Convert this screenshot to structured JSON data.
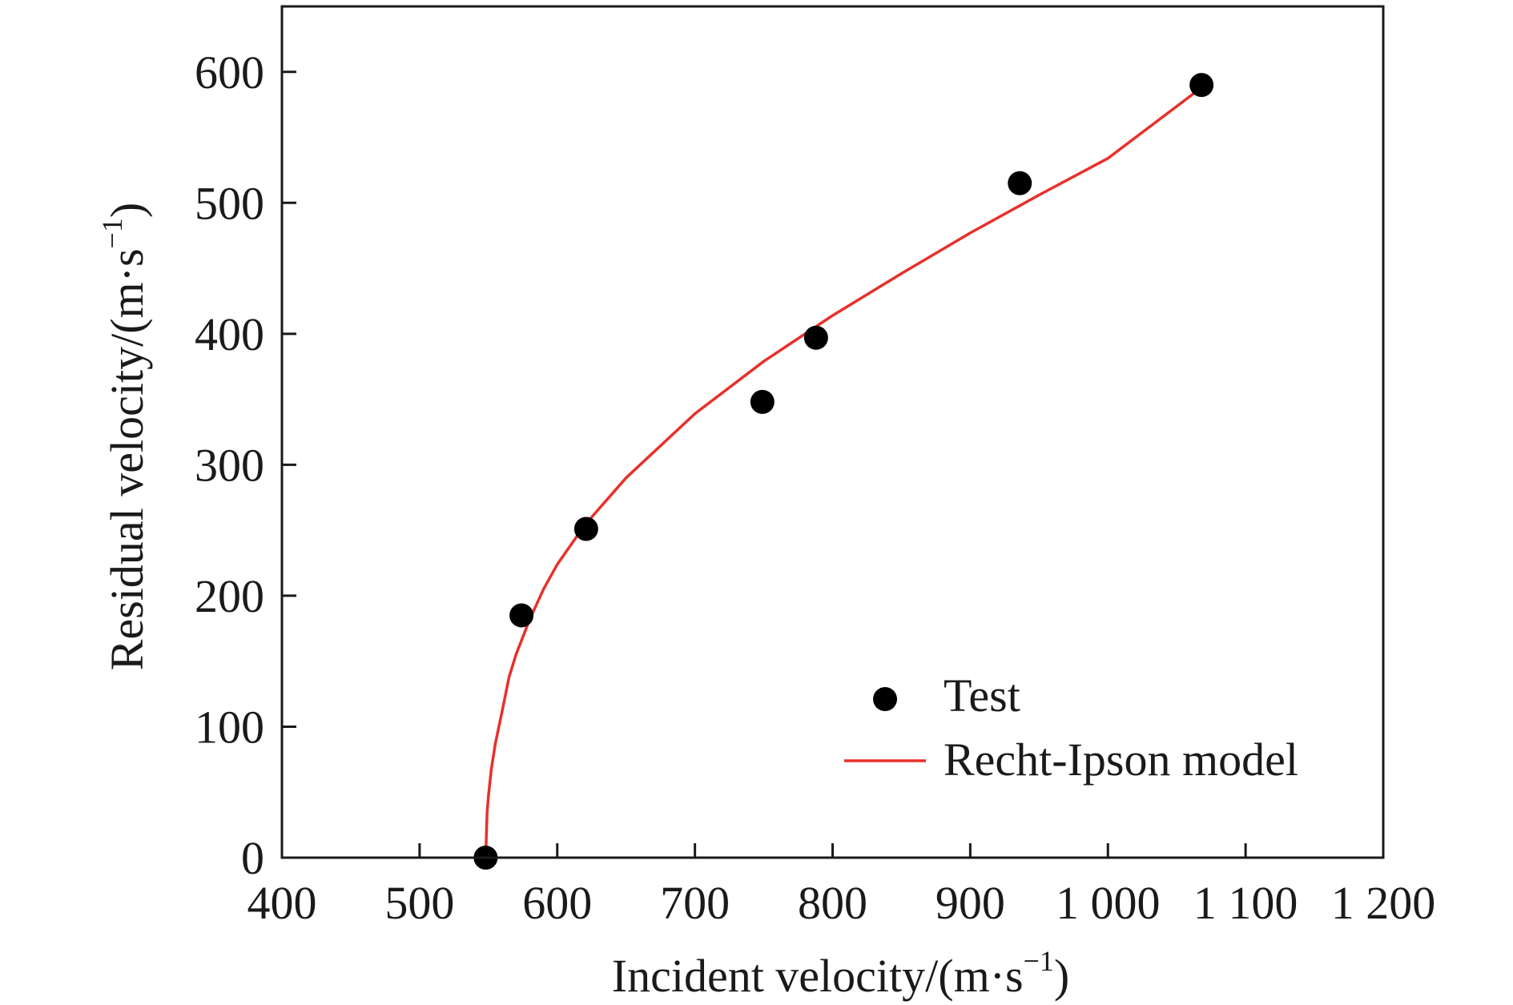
{
  "chart_data": {
    "type": "scatter",
    "x_axis": {
      "label_main": "Incident velocity/(m·s",
      "label_sup": "−1",
      "label_close": ")",
      "min": 400,
      "max": 1200,
      "ticks": [
        400,
        500,
        600,
        700,
        800,
        900,
        1000,
        1100,
        1200
      ],
      "tick_labels": [
        "400",
        "500",
        "600",
        "700",
        "800",
        "900",
        "1 000",
        "1 100",
        "1 200"
      ]
    },
    "y_axis": {
      "label_main": "Residual velocity/(m·s",
      "label_sup": "−1",
      "label_close": ")",
      "min": 0,
      "max": 650,
      "ticks": [
        0,
        100,
        200,
        300,
        400,
        500,
        600
      ],
      "tick_labels": [
        "0",
        "100",
        "200",
        "300",
        "400",
        "500",
        "600"
      ]
    },
    "series": [
      {
        "name": "Test",
        "kind": "scatter",
        "color": "#000000",
        "points": [
          {
            "x": 548,
            "y": 0
          },
          {
            "x": 574,
            "y": 185
          },
          {
            "x": 621,
            "y": 251
          },
          {
            "x": 749,
            "y": 348
          },
          {
            "x": 788,
            "y": 397
          },
          {
            "x": 936,
            "y": 515
          },
          {
            "x": 1068,
            "y": 590
          }
        ]
      },
      {
        "name": "Recht-Ipson model",
        "kind": "line",
        "color": "#e8302b",
        "curve": [
          {
            "x": 548,
            "y": 0
          },
          {
            "x": 549,
            "y": 34
          },
          {
            "x": 550,
            "y": 47
          },
          {
            "x": 552,
            "y": 67
          },
          {
            "x": 555,
            "y": 87
          },
          {
            "x": 560,
            "y": 112
          },
          {
            "x": 565,
            "y": 138
          },
          {
            "x": 570,
            "y": 155
          },
          {
            "x": 580,
            "y": 182
          },
          {
            "x": 590,
            "y": 205
          },
          {
            "x": 600,
            "y": 224
          },
          {
            "x": 620,
            "y": 254
          },
          {
            "x": 650,
            "y": 290
          },
          {
            "x": 700,
            "y": 339
          },
          {
            "x": 750,
            "y": 379
          },
          {
            "x": 800,
            "y": 414
          },
          {
            "x": 850,
            "y": 446
          },
          {
            "x": 900,
            "y": 477
          },
          {
            "x": 950,
            "y": 506
          },
          {
            "x": 1000,
            "y": 534
          },
          {
            "x": 1068,
            "y": 588
          }
        ]
      }
    ],
    "legend": {
      "position": "bottom-right",
      "entries": [
        "Test",
        "Recht-Ipson model"
      ]
    }
  }
}
